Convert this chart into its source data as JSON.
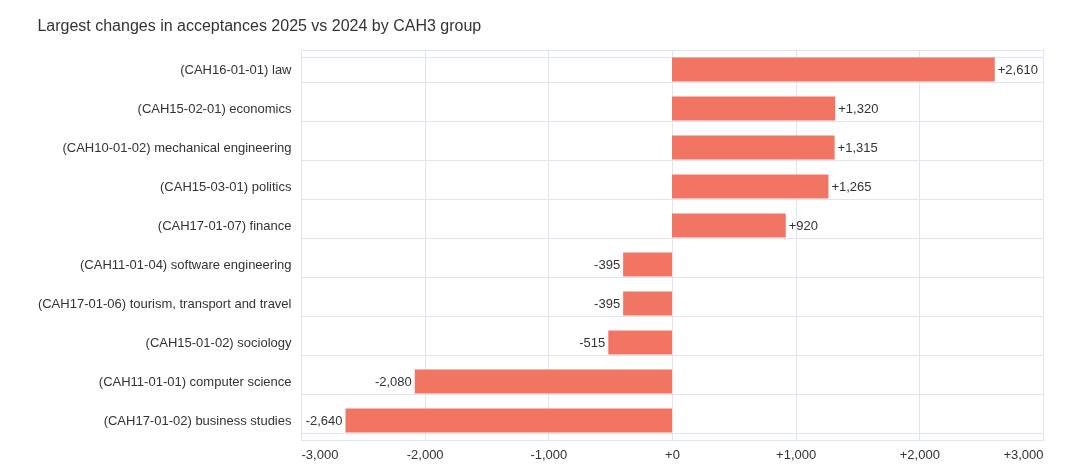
{
  "chart_data": {
    "type": "bar",
    "orientation": "horizontal",
    "title": "Largest changes in acceptances 2025 vs 2024 by CAH3 group",
    "categories": [
      "(CAH16-01-01) law",
      "(CAH15-02-01) economics",
      "(CAH10-01-02) mechanical engineering",
      "(CAH15-03-01) politics",
      "(CAH17-01-07) finance",
      "(CAH11-01-04) software engineering",
      "(CAH17-01-06) tourism, transport and travel",
      "(CAH15-01-02) sociology",
      "(CAH11-01-01) computer science",
      "(CAH17-01-02) business studies"
    ],
    "values": [
      2610,
      1320,
      1315,
      1265,
      920,
      -395,
      -395,
      -515,
      -2080,
      -2640
    ],
    "value_labels": [
      "+2,610",
      "+1,320",
      "+1,315",
      "+1,265",
      "+920",
      "-395",
      "-395",
      "-515",
      "-2,080",
      "-2,640"
    ],
    "color": "#f27463",
    "xlim": [
      -3000,
      3000
    ],
    "xticks": [
      {
        "value": -3000,
        "label": "-3,000"
      },
      {
        "value": -2000,
        "label": "-2,000"
      },
      {
        "value": -1000,
        "label": "-1,000"
      },
      {
        "value": 0,
        "label": "+0"
      },
      {
        "value": 1000,
        "label": "+1,000"
      },
      {
        "value": 2000,
        "label": "+2,000"
      },
      {
        "value": 3000,
        "label": "+3,000"
      }
    ],
    "grid": true
  }
}
